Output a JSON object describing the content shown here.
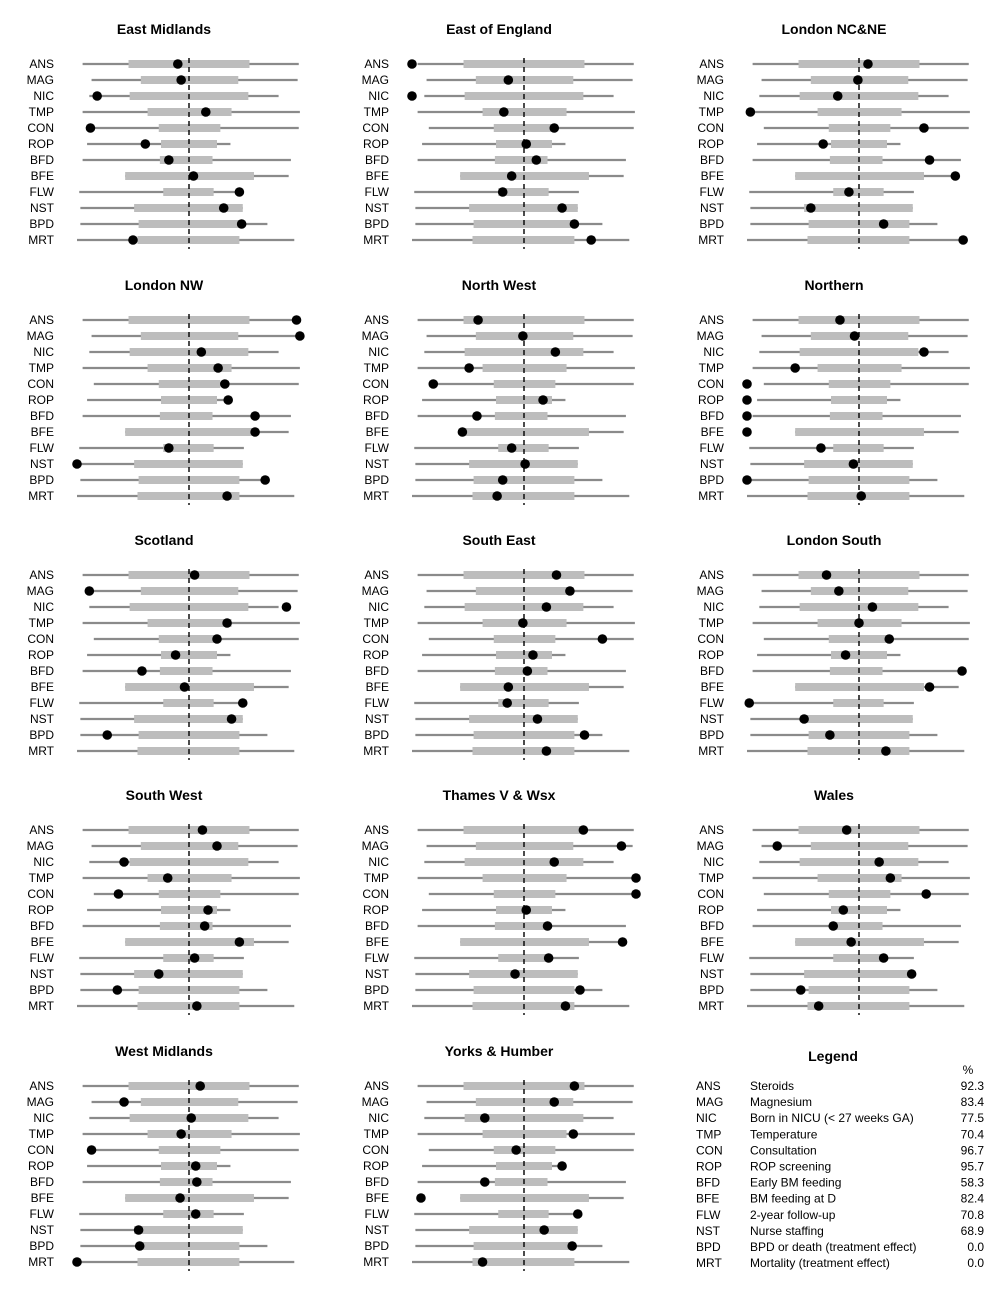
{
  "legend": {
    "title": "Legend",
    "pct_header": "%",
    "items": [
      {
        "code": "ANS",
        "name": "Steroids",
        "pct": "92.3"
      },
      {
        "code": "MAG",
        "name": "Magnesium",
        "pct": "83.4"
      },
      {
        "code": "NIC",
        "name": "Born in NICU (< 27 weeks GA)",
        "pct": "77.5"
      },
      {
        "code": "TMP",
        "name": "Temperature",
        "pct": "70.4"
      },
      {
        "code": "CON",
        "name": "Consultation",
        "pct": "96.7"
      },
      {
        "code": "ROP",
        "name": "ROP screening",
        "pct": "95.7"
      },
      {
        "code": "BFD",
        "name": "Early BM feeding",
        "pct": "58.3"
      },
      {
        "code": "BFE",
        "name": "BM feeding at D",
        "pct": "82.4"
      },
      {
        "code": "FLW",
        "name": "2-year follow-up",
        "pct": "70.8"
      },
      {
        "code": "NST",
        "name": "Nurse staffing",
        "pct": "68.9"
      },
      {
        "code": "BPD",
        "name": "BPD or death (treatment effect)",
        "pct": "0.0"
      },
      {
        "code": "MRT",
        "name": "Mortality (treatment effect)",
        "pct": "0.0"
      }
    ]
  },
  "chart_data": {
    "type": "dot-range",
    "rows": [
      "ANS",
      "MAG",
      "NIC",
      "TMP",
      "CON",
      "ROP",
      "BFD",
      "BFE",
      "FLW",
      "NST",
      "BPD",
      "MRT"
    ],
    "axis_range": [
      -1,
      1
    ],
    "reference_line": 0,
    "reference_style": "dashed",
    "ranges": {
      "ANS": {
        "full": [
          -0.95,
          0.98
        ],
        "inner": [
          -0.54,
          0.54
        ]
      },
      "MAG": {
        "full": [
          -0.87,
          0.97
        ],
        "inner": [
          -0.43,
          0.44
        ]
      },
      "NIC": {
        "full": [
          -0.89,
          0.8
        ],
        "inner": [
          -0.53,
          0.53
        ]
      },
      "TMP": {
        "full": [
          -0.95,
          0.99
        ],
        "inner": [
          -0.37,
          0.38
        ]
      },
      "CON": {
        "full": [
          -0.85,
          0.98
        ],
        "inner": [
          -0.27,
          0.28
        ]
      },
      "ROP": {
        "full": [
          -0.91,
          0.37
        ],
        "inner": [
          -0.25,
          0.25
        ]
      },
      "BFD": {
        "full": [
          -0.95,
          0.91
        ],
        "inner": [
          -0.26,
          0.21
        ]
      },
      "BFE": {
        "full": [
          -0.57,
          0.89
        ],
        "inner": [
          -0.57,
          0.58
        ]
      },
      "FLW": {
        "full": [
          -0.98,
          0.49
        ],
        "inner": [
          -0.23,
          0.22
        ]
      },
      "NST": {
        "full": [
          -0.97,
          0.48
        ],
        "inner": [
          -0.49,
          0.48
        ]
      },
      "BPD": {
        "full": [
          -0.97,
          0.7
        ],
        "inner": [
          -0.45,
          0.45
        ]
      },
      "MRT": {
        "full": [
          -1.0,
          0.94
        ],
        "inner": [
          -0.46,
          0.45
        ]
      }
    },
    "panels": [
      {
        "title": "East Midlands",
        "values": [
          -0.1,
          -0.07,
          -0.82,
          0.15,
          -0.88,
          -0.39,
          -0.18,
          0.04,
          0.45,
          0.31,
          0.47,
          -0.5
        ]
      },
      {
        "title": "East of England",
        "values": [
          -1.0,
          -0.14,
          -1.0,
          -0.18,
          0.27,
          0.02,
          0.11,
          -0.11,
          -0.19,
          0.34,
          0.45,
          0.6
        ]
      },
      {
        "title": "London NC&NE",
        "values": [
          0.08,
          -0.01,
          -0.19,
          -0.97,
          0.58,
          -0.32,
          0.63,
          0.86,
          -0.09,
          -0.43,
          0.22,
          0.93
        ]
      },
      {
        "title": "London NW",
        "values": [
          0.96,
          0.99,
          0.11,
          0.26,
          0.32,
          0.35,
          0.59,
          0.59,
          -0.18,
          -1.0,
          0.68,
          0.34
        ]
      },
      {
        "title": "North West",
        "values": [
          -0.41,
          -0.01,
          0.28,
          -0.49,
          -0.81,
          0.17,
          -0.42,
          -0.55,
          -0.11,
          0.01,
          -0.19,
          -0.24
        ]
      },
      {
        "title": "Northern",
        "values": [
          -0.17,
          -0.04,
          0.58,
          -0.57,
          -1.0,
          -1.0,
          -1.0,
          -1.0,
          -0.34,
          -0.05,
          -1.0,
          0.02
        ]
      },
      {
        "title": "Scotland",
        "values": [
          0.05,
          -0.89,
          0.87,
          0.34,
          0.25,
          -0.12,
          -0.42,
          -0.04,
          0.48,
          0.38,
          -0.73,
          null
        ]
      },
      {
        "title": "South East",
        "values": [
          0.29,
          0.41,
          0.2,
          -0.01,
          0.7,
          0.08,
          0.03,
          -0.14,
          -0.15,
          0.12,
          0.54,
          0.2
        ]
      },
      {
        "title": "London South",
        "values": [
          -0.29,
          -0.18,
          0.12,
          0.0,
          0.27,
          -0.12,
          0.92,
          0.63,
          -0.98,
          -0.49,
          -0.26,
          0.24
        ]
      },
      {
        "title": "South West",
        "values": [
          0.12,
          0.25,
          -0.58,
          -0.19,
          -0.63,
          0.17,
          0.14,
          0.45,
          0.05,
          -0.27,
          -0.64,
          0.07
        ]
      },
      {
        "title": "Thames V & Wsx",
        "values": [
          0.53,
          0.87,
          0.27,
          1.0,
          1.0,
          0.02,
          0.21,
          0.88,
          0.22,
          -0.08,
          0.5,
          0.37
        ]
      },
      {
        "title": "Wales",
        "values": [
          -0.11,
          -0.73,
          0.18,
          0.28,
          0.6,
          -0.14,
          -0.23,
          -0.07,
          0.22,
          0.47,
          -0.52,
          -0.36
        ]
      },
      {
        "title": "West Midlands",
        "values": [
          0.1,
          -0.58,
          0.02,
          -0.07,
          -0.87,
          0.06,
          0.07,
          -0.08,
          0.06,
          -0.45,
          -0.44,
          -1.0
        ]
      },
      {
        "title": "Yorks & Humber",
        "values": [
          0.45,
          0.27,
          -0.35,
          0.44,
          -0.07,
          0.34,
          -0.35,
          -0.92,
          0.48,
          0.18,
          0.43,
          -0.37
        ]
      }
    ]
  }
}
